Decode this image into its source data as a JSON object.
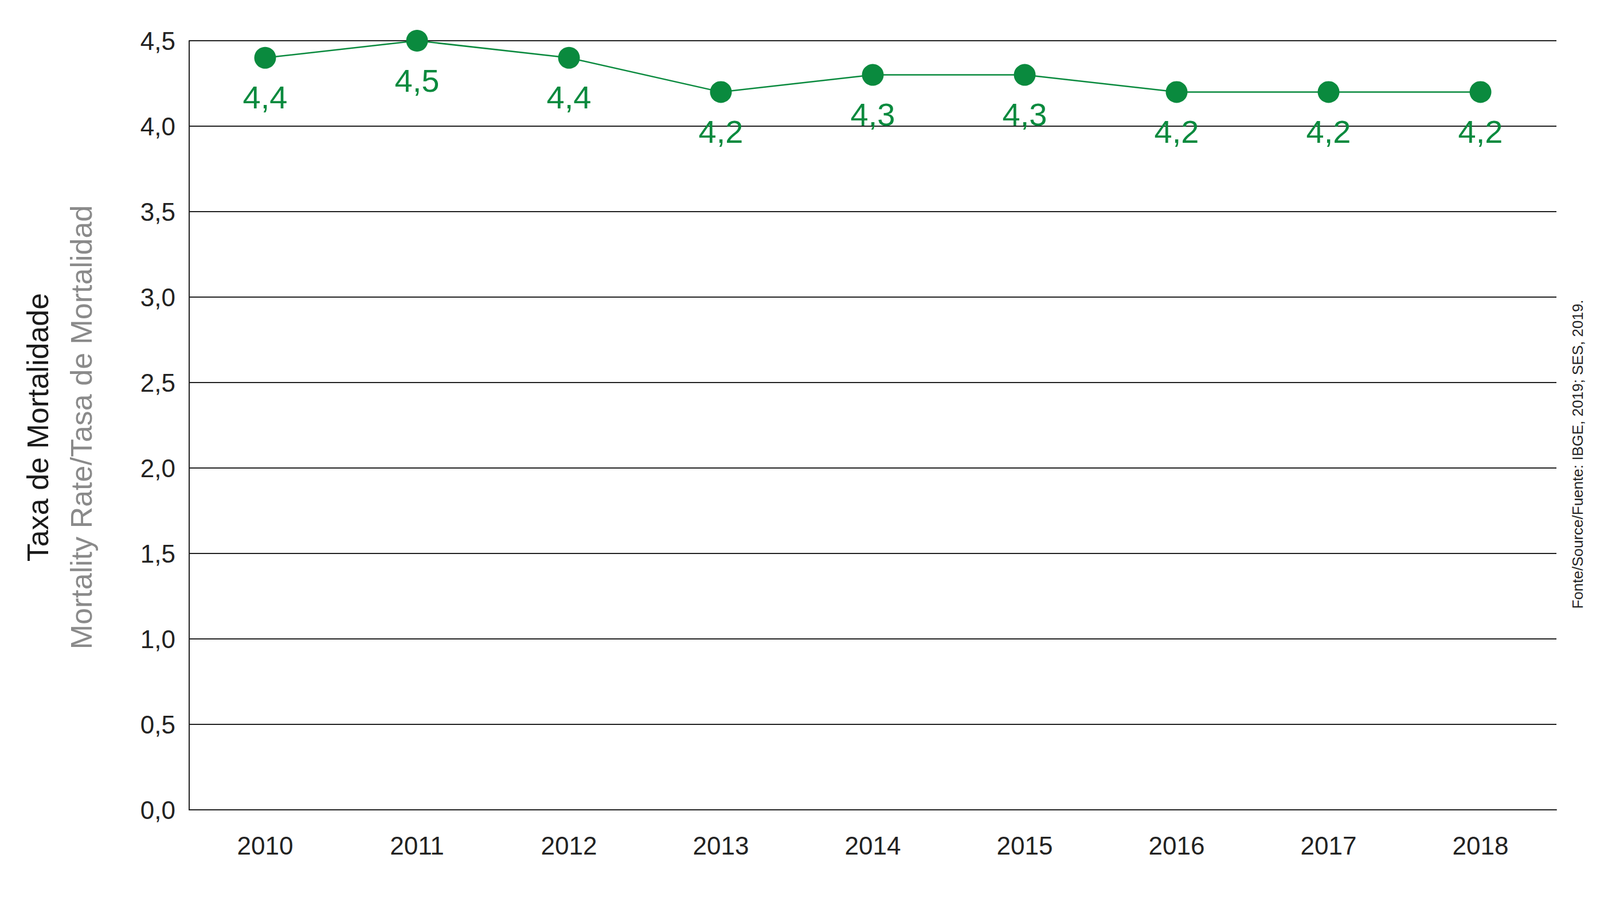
{
  "chart_data": {
    "type": "line",
    "ylabel": [
      "Taxa de Mortalidade",
      "Mortality Rate/Tasa de Mortalidad"
    ],
    "annotations": [
      "Fonte/Source/Fuente: IBGE, 2019; SES, 2019."
    ],
    "categories": [
      "2010",
      "2011",
      "2012",
      "2013",
      "2014",
      "2015",
      "2016",
      "2017",
      "2018"
    ],
    "values": [
      4.4,
      4.5,
      4.4,
      4.2,
      4.3,
      4.3,
      4.2,
      4.2,
      4.2
    ],
    "value_labels": [
      "4,4",
      "4,5",
      "4,4",
      "4,2",
      "4,3",
      "4,3",
      "4,2",
      "4,2",
      "4,2"
    ],
    "color": "#0a8a3e",
    "marker": "circle",
    "line_style": "solid",
    "data_labels": true,
    "grid": true,
    "ylim": [
      0,
      4.5
    ],
    "yticks": [
      {
        "value": 0,
        "label": "0,0"
      },
      {
        "value": 0.5,
        "label": "0,5"
      },
      {
        "value": 1,
        "label": "1,0"
      },
      {
        "value": 1.5,
        "label": "1,5"
      },
      {
        "value": 2,
        "label": "2,0"
      },
      {
        "value": 2.5,
        "label": "2,5"
      },
      {
        "value": 3,
        "label": "3,0"
      },
      {
        "value": 3.5,
        "label": "3,5"
      },
      {
        "value": 4,
        "label": "4,0"
      },
      {
        "value": 4.5,
        "label": "4,5"
      }
    ]
  }
}
